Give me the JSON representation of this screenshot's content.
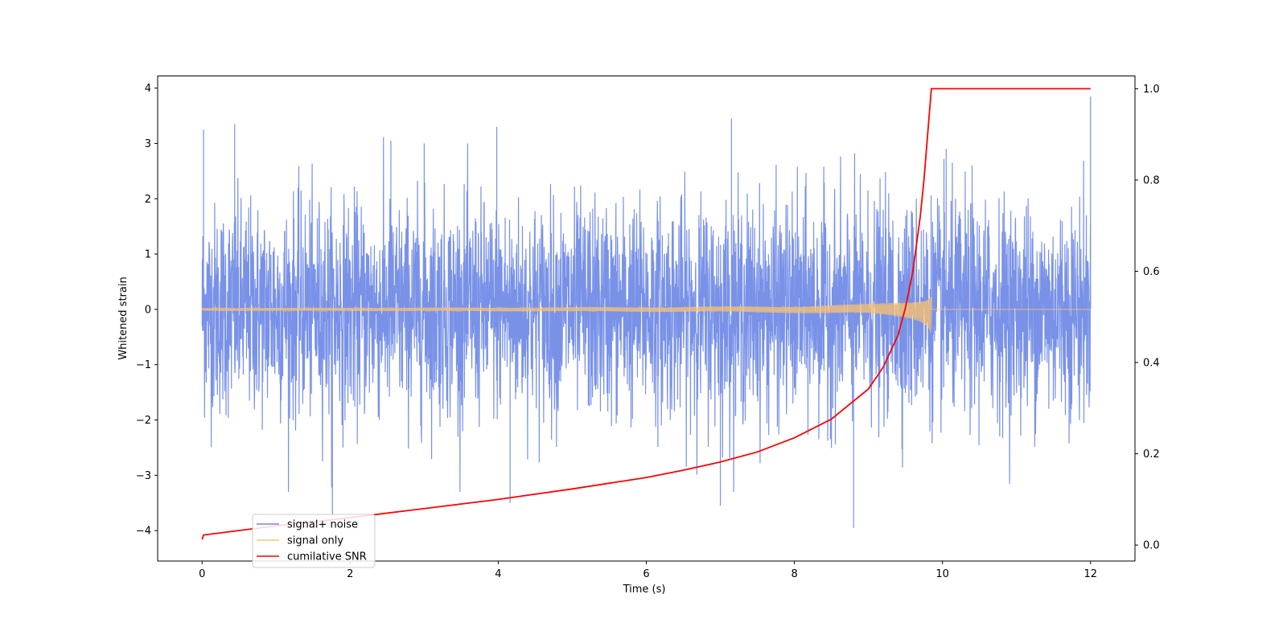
{
  "chart_data": {
    "type": "line",
    "xlabel": "Time (s)",
    "ylabel": "Whitened strain",
    "xlim": [
      -0.6,
      12.6
    ],
    "ylim": [
      -4.55,
      4.22
    ],
    "y2lim": [
      -0.035,
      1.028
    ],
    "xticks": [
      0,
      2,
      4,
      6,
      8,
      10,
      12
    ],
    "xtick_labels": [
      "0",
      "2",
      "4",
      "6",
      "8",
      "10",
      "12"
    ],
    "yticks": [
      -4,
      -3,
      -2,
      -1,
      0,
      1,
      2,
      3,
      4
    ],
    "ytick_labels": [
      "−4",
      "−3",
      "−2",
      "−1",
      "0",
      "1",
      "2",
      "3",
      "4"
    ],
    "y2ticks": [
      0.0,
      0.2,
      0.4,
      0.6,
      0.8,
      1.0
    ],
    "y2tick_labels": [
      "0.0",
      "0.2",
      "0.4",
      "0.6",
      "0.8",
      "1.0"
    ],
    "grid": false,
    "legend_position": "lower-left",
    "series": [
      {
        "name": "signal+ noise",
        "axis": "left",
        "color": "#6a86e6",
        "x_range": [
          0,
          12
        ],
        "envelope_notes": "dense noise, mostly within ±2 with spikes to about ±3.5",
        "approx_peaks": [
          [
            0.02,
            3.25
          ],
          [
            0.44,
            3.35
          ],
          [
            1.76,
            -3.7
          ],
          [
            2.55,
            3.05
          ],
          [
            3.0,
            3.0
          ],
          [
            3.98,
            3.3
          ],
          [
            4.16,
            -3.5
          ],
          [
            7.15,
            3.45
          ],
          [
            7.0,
            -3.55
          ],
          [
            8.8,
            -3.95
          ],
          [
            10.05,
            2.9
          ],
          [
            10.4,
            2.6
          ],
          [
            12.0,
            3.85
          ]
        ]
      },
      {
        "name": "signal only",
        "axis": "left",
        "color": "#ffc36b",
        "x_range": [
          0,
          12
        ],
        "chirp_end_time": 9.85,
        "peak_amplitude": 0.45
      },
      {
        "name": "cumilative SNR",
        "axis": "right",
        "color": "#ff0000",
        "x": [
          0.0,
          0.02,
          1,
          2,
          3,
          4,
          5,
          6,
          6.5,
          7,
          7.5,
          8,
          8.5,
          9,
          9.2,
          9.4,
          9.5,
          9.6,
          9.7,
          9.75,
          9.8,
          9.83,
          9.85,
          9.87,
          10,
          11,
          12
        ],
        "y": [
          0.012,
          0.022,
          0.042,
          0.06,
          0.08,
          0.1,
          0.123,
          0.148,
          0.164,
          0.182,
          0.204,
          0.235,
          0.276,
          0.342,
          0.39,
          0.46,
          0.52,
          0.6,
          0.72,
          0.8,
          0.9,
          0.96,
          1.0,
          1.0,
          1.0,
          1.0,
          1.0
        ]
      }
    ]
  }
}
